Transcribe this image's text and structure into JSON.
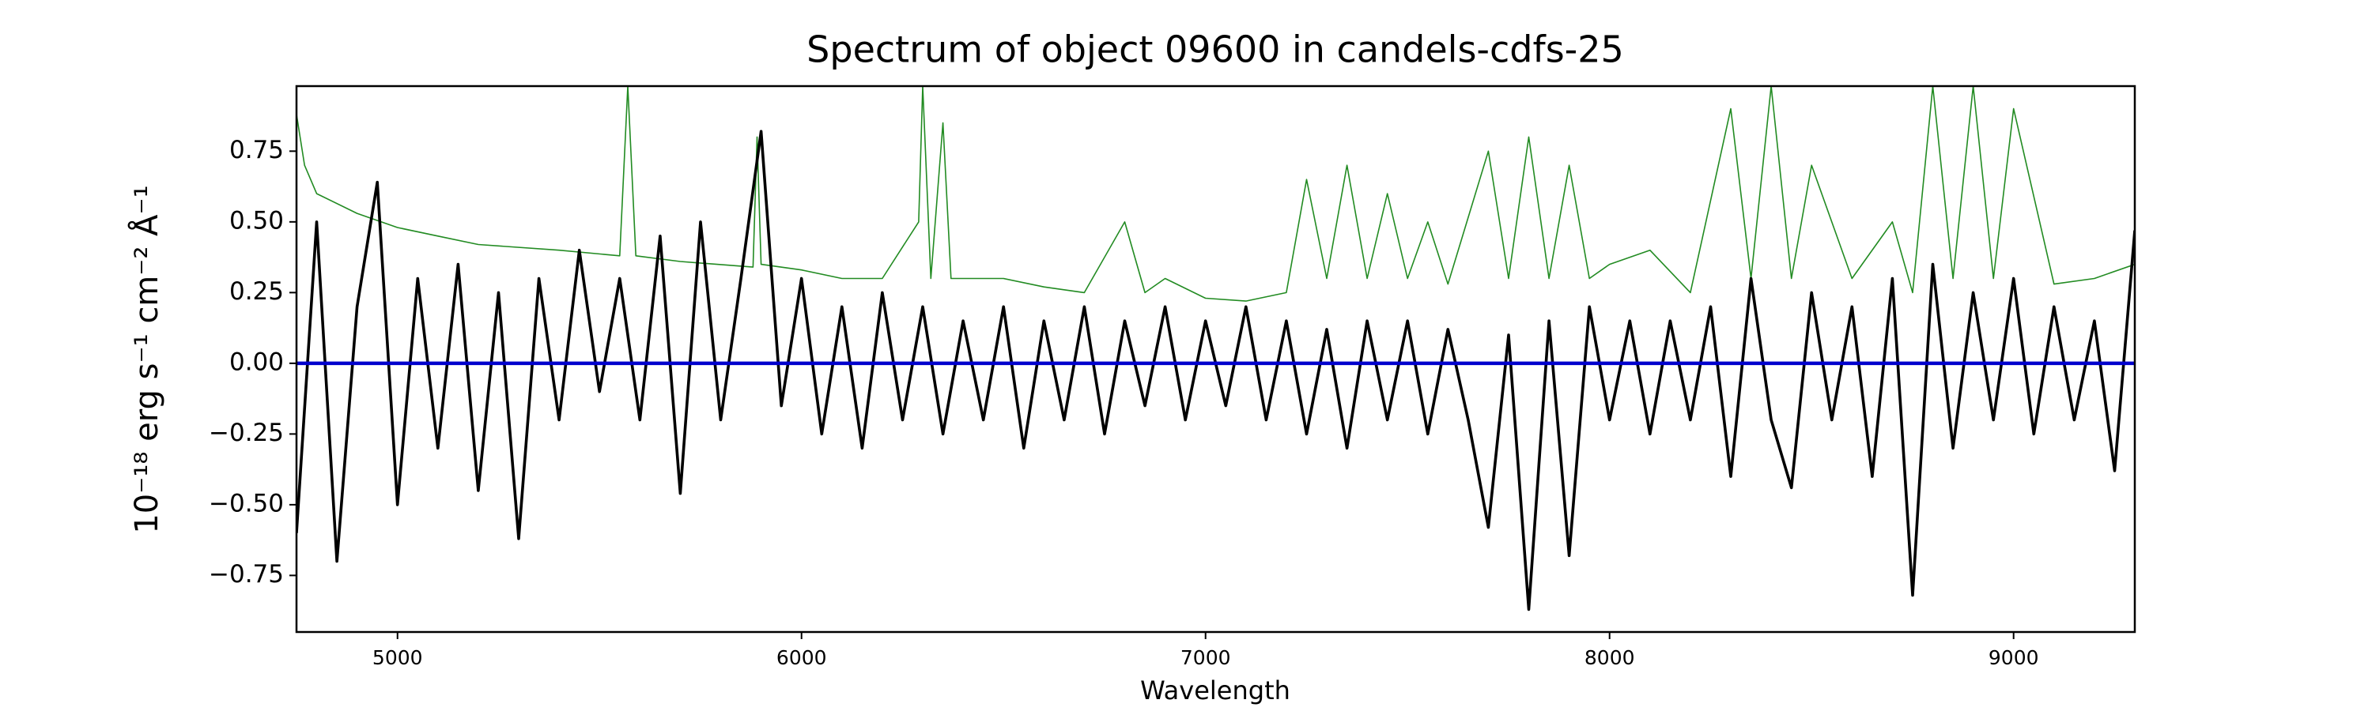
{
  "chart_data": {
    "type": "line",
    "title": "Spectrum of object 09600 in candels-cdfs-25",
    "xlabel": "Wavelength",
    "ylabel": "10⁻¹⁸ erg s⁻¹ cm⁻² Å⁻¹",
    "xlim": [
      4750,
      9300
    ],
    "ylim": [
      -0.95,
      0.98
    ],
    "xticks": [
      5000,
      6000,
      7000,
      8000,
      9000
    ],
    "yticks": [
      {
        "value": -0.75,
        "label": "−0.75"
      },
      {
        "value": -0.5,
        "label": "−0.50"
      },
      {
        "value": -0.25,
        "label": "−0.25"
      },
      {
        "value": 0,
        "label": "0.00"
      },
      {
        "value": 0.25,
        "label": "0.25"
      },
      {
        "value": 0.5,
        "label": "0.50"
      },
      {
        "value": 0.75,
        "label": "0.75"
      }
    ],
    "series": [
      {
        "color": "#228b22",
        "x": [
          4750,
          4770,
          4800,
          4900,
          5000,
          5100,
          5200,
          5400,
          5550,
          5570,
          5590,
          5700,
          5880,
          5890,
          5900,
          6000,
          6100,
          6200,
          6290,
          6300,
          6320,
          6350,
          6370,
          6500,
          6600,
          6700,
          6800,
          6850,
          6900,
          7000,
          7100,
          7200,
          7250,
          7300,
          7350,
          7400,
          7450,
          7500,
          7550,
          7600,
          7700,
          7750,
          7800,
          7850,
          7900,
          7950,
          8000,
          8100,
          8200,
          8300,
          8350,
          8400,
          8450,
          8500,
          8600,
          8700,
          8750,
          8800,
          8850,
          8900,
          8950,
          9000,
          9100,
          9200,
          9300
        ],
        "values": [
          0.88,
          0.7,
          0.6,
          0.53,
          0.48,
          0.45,
          0.42,
          0.4,
          0.38,
          0.98,
          0.38,
          0.36,
          0.34,
          0.8,
          0.35,
          0.33,
          0.3,
          0.3,
          0.5,
          0.98,
          0.3,
          0.85,
          0.3,
          0.3,
          0.27,
          0.25,
          0.5,
          0.25,
          0.3,
          0.23,
          0.22,
          0.25,
          0.65,
          0.3,
          0.7,
          0.3,
          0.6,
          0.3,
          0.5,
          0.28,
          0.75,
          0.3,
          0.8,
          0.3,
          0.7,
          0.3,
          0.35,
          0.4,
          0.25,
          0.9,
          0.3,
          0.98,
          0.3,
          0.7,
          0.3,
          0.5,
          0.25,
          0.98,
          0.3,
          0.98,
          0.3,
          0.9,
          0.28,
          0.3,
          0.35
        ]
      },
      {
        "color": "#000000",
        "x": [
          4750,
          4800,
          4850,
          4900,
          4950,
          5000,
          5050,
          5100,
          5150,
          5200,
          5250,
          5300,
          5350,
          5400,
          5450,
          5500,
          5550,
          5600,
          5650,
          5700,
          5750,
          5800,
          5850,
          5900,
          5950,
          6000,
          6050,
          6100,
          6150,
          6200,
          6250,
          6300,
          6350,
          6400,
          6450,
          6500,
          6550,
          6600,
          6650,
          6700,
          6750,
          6800,
          6850,
          6900,
          6950,
          7000,
          7050,
          7100,
          7150,
          7200,
          7250,
          7300,
          7350,
          7400,
          7450,
          7500,
          7550,
          7600,
          7650,
          7700,
          7750,
          7800,
          7850,
          7900,
          7950,
          8000,
          8050,
          8100,
          8150,
          8200,
          8250,
          8300,
          8350,
          8400,
          8450,
          8500,
          8550,
          8600,
          8650,
          8700,
          8750,
          8800,
          8850,
          8900,
          8950,
          9000,
          9050,
          9100,
          9150,
          9200,
          9250,
          9300
        ],
        "values": [
          -0.6,
          0.5,
          -0.7,
          0.2,
          0.64,
          -0.5,
          0.3,
          -0.3,
          0.35,
          -0.45,
          0.25,
          -0.62,
          0.3,
          -0.2,
          0.4,
          -0.1,
          0.3,
          -0.2,
          0.45,
          -0.46,
          0.5,
          -0.2,
          0.3,
          0.82,
          -0.15,
          0.3,
          -0.25,
          0.2,
          -0.3,
          0.25,
          -0.2,
          0.2,
          -0.25,
          0.15,
          -0.2,
          0.2,
          -0.3,
          0.15,
          -0.2,
          0.2,
          -0.25,
          0.15,
          -0.15,
          0.2,
          -0.2,
          0.15,
          -0.15,
          0.2,
          -0.2,
          0.15,
          -0.25,
          0.12,
          -0.3,
          0.15,
          -0.2,
          0.15,
          -0.25,
          0.12,
          -0.2,
          -0.58,
          0.1,
          -0.87,
          0.15,
          -0.68,
          0.2,
          -0.2,
          0.15,
          -0.25,
          0.15,
          -0.2,
          0.2,
          -0.4,
          0.3,
          -0.2,
          -0.44,
          0.25,
          -0.2,
          0.2,
          -0.4,
          0.3,
          -0.82,
          0.35,
          -0.3,
          0.25,
          -0.2,
          0.3,
          -0.25,
          0.2,
          -0.2,
          0.15,
          -0.38,
          0.47
        ]
      },
      {
        "color": "#0000cd",
        "x": [
          4750,
          9300
        ],
        "values": [
          0,
          0
        ]
      }
    ]
  }
}
